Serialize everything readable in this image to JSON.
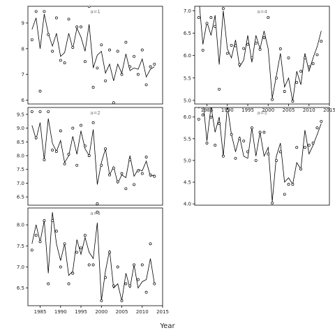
{
  "figure": {
    "xlabel": "Year",
    "colors": {
      "line": "#000000",
      "point": "#000000",
      "frame": "#000000",
      "strip_text": "#7a7a7a"
    }
  },
  "chart_data": [
    {
      "type": "line",
      "panel_label": "a=1",
      "xlim": [
        1982,
        2015
      ],
      "ylim": [
        5.85,
        9.65
      ],
      "yticks": [
        6,
        7,
        8,
        9
      ],
      "xticks": [],
      "grid": false,
      "x": [
        1983,
        1984,
        1985,
        1986,
        1987,
        1988,
        1989,
        1990,
        1991,
        1992,
        1993,
        1994,
        1995,
        1996,
        1997,
        1998,
        1999,
        2000,
        2001,
        2002,
        2003,
        2004,
        2005,
        2006,
        2007,
        2008,
        2009,
        2010,
        2011,
        2012,
        2013
      ],
      "series": [
        {
          "role": "fitted",
          "values": [
            8.75,
            9.2,
            8.0,
            9.35,
            8.6,
            8.1,
            8.6,
            7.7,
            7.85,
            8.6,
            8.0,
            8.8,
            8.45,
            7.9,
            8.95,
            7.25,
            7.75,
            7.9,
            7.05,
            7.4,
            6.75,
            7.4,
            7.05,
            7.8,
            7.15,
            7.25,
            7.2,
            7.6,
            6.9,
            7.2,
            7.3
          ]
        },
        {
          "role": "observed",
          "values": [
            8.35,
            9.45,
            6.35,
            9.45,
            8.55,
            7.9,
            9.2,
            7.55,
            7.45,
            9.15,
            8.05,
            8.85,
            8.85,
            7.5,
            9.65,
            6.5,
            7.25,
            8.15,
            6.75,
            7.95,
            5.9,
            7.9,
            7.0,
            8.25,
            7.3,
            7.7,
            7.0,
            7.95,
            6.6,
            7.3,
            7.4
          ]
        }
      ]
    },
    {
      "type": "line",
      "panel_label": "a=2",
      "xlim": [
        1982,
        2015
      ],
      "ylim": [
        6.2,
        9.75
      ],
      "yticks": [
        6.5,
        7.0,
        7.5,
        8.0,
        8.5,
        9.0,
        9.5
      ],
      "xticks": [],
      "grid": false,
      "x": [
        1983,
        1984,
        1985,
        1986,
        1987,
        1988,
        1989,
        1990,
        1991,
        1992,
        1993,
        1994,
        1995,
        1996,
        1997,
        1998,
        1999,
        2000,
        2001,
        2002,
        2003,
        2004,
        2005,
        2006,
        2007,
        2008,
        2009,
        2010,
        2011,
        2012,
        2013
      ],
      "series": [
        {
          "role": "fitted",
          "values": [
            9.1,
            8.6,
            9.2,
            7.85,
            9.35,
            8.45,
            8.15,
            8.55,
            7.75,
            8.0,
            8.7,
            8.05,
            8.9,
            8.25,
            8.0,
            8.95,
            6.95,
            7.75,
            8.25,
            7.3,
            7.6,
            7.0,
            7.3,
            7.2,
            8.0,
            7.25,
            7.5,
            7.45,
            7.8,
            7.25,
            7.3
          ]
        },
        {
          "role": "observed",
          "values": [
            9.6,
            8.65,
            9.6,
            7.85,
            9.6,
            8.2,
            8.15,
            8.9,
            7.7,
            8.05,
            9.0,
            7.65,
            9.1,
            8.35,
            8.0,
            9.2,
            6.25,
            7.65,
            8.25,
            7.3,
            7.55,
            7.05,
            7.35,
            6.8,
            7.85,
            6.95,
            7.45,
            7.35,
            7.95,
            7.3,
            7.25
          ]
        }
      ]
    },
    {
      "type": "line",
      "panel_label": "a=3",
      "xlim": [
        1982,
        2015
      ],
      "ylim": [
        6.08,
        8.4
      ],
      "yticks": [
        6.5,
        7.0,
        7.5,
        8.0
      ],
      "xticks": [
        1985,
        1990,
        1995,
        2000,
        2005,
        2010,
        2015
      ],
      "grid": false,
      "x": [
        1983,
        1984,
        1985,
        1986,
        1987,
        1988,
        1989,
        1990,
        1991,
        1992,
        1993,
        1994,
        1995,
        1996,
        1997,
        1998,
        1999,
        2000,
        2001,
        2002,
        2003,
        2004,
        2005,
        2006,
        2007,
        2008,
        2009,
        2010,
        2011,
        2012,
        2013
      ],
      "series": [
        {
          "role": "fitted",
          "values": [
            7.55,
            8.0,
            7.6,
            8.1,
            6.85,
            8.3,
            7.55,
            7.15,
            7.55,
            6.8,
            6.9,
            7.65,
            7.3,
            7.7,
            7.35,
            7.2,
            8.05,
            6.2,
            6.9,
            7.4,
            6.5,
            6.6,
            6.2,
            6.85,
            6.5,
            7.05,
            6.5,
            6.65,
            6.7,
            7.2,
            6.6
          ]
        },
        {
          "role": "observed",
          "values": [
            7.4,
            7.75,
            7.6,
            8.1,
            6.6,
            8.1,
            7.85,
            7.0,
            7.55,
            6.6,
            6.85,
            7.35,
            7.45,
            7.75,
            7.05,
            7.05,
            8.3,
            6.2,
            6.75,
            7.35,
            6.55,
            7.0,
            6.2,
            6.6,
            6.55,
            7.05,
            6.7,
            7.05,
            6.4,
            7.55,
            6.6
          ]
        }
      ]
    },
    {
      "type": "line",
      "panel_label": "a=4",
      "xlim": [
        1982,
        2015
      ],
      "ylim": [
        4.92,
        7.1
      ],
      "yticks": [
        5.0,
        5.5,
        6.0,
        6.5,
        7.0
      ],
      "xticks": [
        1985,
        1990,
        1995,
        2000,
        2005,
        2010,
        2015
      ],
      "grid": false,
      "x": [
        1983,
        1984,
        1985,
        1986,
        1987,
        1988,
        1989,
        1990,
        1991,
        1992,
        1993,
        1994,
        1995,
        1996,
        1997,
        1998,
        1999,
        2000,
        2001,
        2002,
        2003,
        2004,
        2005,
        2006,
        2007,
        2008,
        2009,
        2010,
        2011,
        2012,
        2013
      ],
      "series": [
        {
          "role": "fitted",
          "values": [
            7.3,
            6.25,
            6.75,
            6.45,
            6.9,
            5.8,
            7.0,
            6.15,
            5.95,
            6.35,
            5.75,
            5.9,
            6.45,
            5.85,
            6.45,
            6.15,
            6.55,
            6.15,
            5.05,
            5.55,
            6.05,
            5.3,
            5.5,
            4.98,
            5.65,
            5.35,
            6.05,
            5.65,
            5.95,
            6.2,
            6.55
          ]
        },
        {
          "role": "observed",
          "values": [
            6.85,
            6.12,
            6.72,
            6.85,
            6.65,
            5.25,
            7.05,
            6.05,
            6.23,
            6.22,
            5.8,
            6.16,
            6.25,
            5.95,
            6.28,
            6.14,
            6.4,
            6.85,
            5.02,
            5.5,
            6.15,
            5.2,
            5.95,
            4.98,
            5.4,
            5.65,
            5.95,
            5.75,
            5.82,
            6.02,
            6.32
          ]
        }
      ]
    },
    {
      "type": "line",
      "panel_label": "a=5",
      "xlim": [
        1982,
        2015
      ],
      "ylim": [
        3.97,
        6.22
      ],
      "yticks": [
        4.0,
        4.5,
        5.0,
        5.5,
        6.0
      ],
      "xticks": [],
      "grid": false,
      "x": [
        1983,
        1984,
        1985,
        1986,
        1987,
        1988,
        1989,
        1990,
        1991,
        1992,
        1993,
        1994,
        1995,
        1996,
        1997,
        1998,
        1999,
        2000,
        2001,
        2002,
        2003,
        2004,
        2005,
        2006,
        2007,
        2008,
        2009,
        2010,
        2011,
        2012,
        2013
      ],
      "series": [
        {
          "role": "fitted",
          "values": [
            6.2,
            6.4,
            5.45,
            6.25,
            5.65,
            6.0,
            5.1,
            6.25,
            5.6,
            5.2,
            5.55,
            5.1,
            5.05,
            5.75,
            5.1,
            5.65,
            5.1,
            5.3,
            4.05,
            5.1,
            5.4,
            4.5,
            4.6,
            4.45,
            4.95,
            4.8,
            5.7,
            5.15,
            5.35,
            5.6,
            5.85
          ]
        },
        {
          "role": "observed",
          "values": [
            5.95,
            6.05,
            5.4,
            6.0,
            5.35,
            5.85,
            5.1,
            6.15,
            5.6,
            5.05,
            5.5,
            5.45,
            5.2,
            5.75,
            5.0,
            5.65,
            5.65,
            5.15,
            4.02,
            5.0,
            5.2,
            4.22,
            4.45,
            4.45,
            5.3,
            4.8,
            5.3,
            5.35,
            5.4,
            5.75,
            5.9
          ]
        }
      ]
    }
  ]
}
